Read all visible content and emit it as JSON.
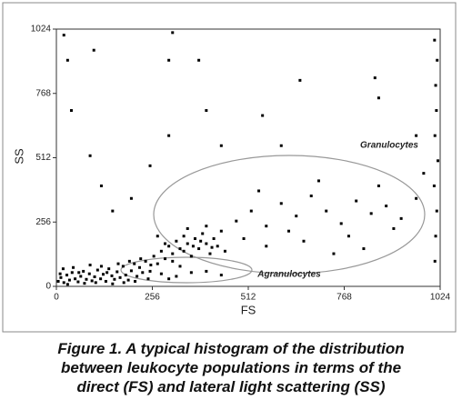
{
  "chart_data": {
    "type": "scatter",
    "xlabel": "FS",
    "ylabel": "SS",
    "xlim": [
      0,
      1024
    ],
    "ylim": [
      0,
      1024
    ],
    "xticks": [
      0,
      256,
      512,
      768,
      1024
    ],
    "yticks": [
      0,
      256,
      512,
      768,
      1024
    ],
    "color": "#000000",
    "annotations": [
      "Granulocytes",
      "Agranulocytes"
    ],
    "caption_lines": [
      "Figure 1. A typical histogram of the distribution",
      "between leukocyte populations in terms of the",
      "direct (FS) and lateral light scattering (SS)"
    ],
    "x": [
      5,
      12,
      20,
      28,
      35,
      42,
      50,
      58,
      65,
      72,
      80,
      88,
      95,
      102,
      110,
      118,
      125,
      132,
      140,
      148,
      155,
      162,
      170,
      178,
      185,
      192,
      200,
      208,
      215,
      222,
      230,
      238,
      245,
      252,
      10,
      18,
      30,
      45,
      60,
      75,
      90,
      105,
      120,
      135,
      150,
      165,
      180,
      195,
      210,
      225,
      260,
      270,
      280,
      290,
      300,
      310,
      320,
      330,
      340,
      350,
      360,
      370,
      380,
      390,
      400,
      410,
      420,
      430,
      440,
      450,
      310,
      340,
      365,
      385,
      415,
      290,
      350,
      400,
      270,
      330,
      250,
      280,
      320,
      360,
      400,
      440,
      300,
      480,
      520,
      560,
      600,
      640,
      680,
      720,
      760,
      800,
      840,
      880,
      920,
      960,
      700,
      620,
      540,
      860,
      900,
      780,
      660,
      500,
      560,
      740,
      820,
      150,
      120,
      200,
      90,
      250,
      300,
      400,
      550,
      650,
      850,
      300,
      100,
      30,
      40,
      440,
      600,
      960,
      980,
      1010,
      1012,
      1015,
      1008,
      1018,
      1010,
      1014,
      1012,
      1016,
      1009,
      310,
      20,
      380,
      860
    ],
    "y": [
      20,
      35,
      15,
      45,
      25,
      55,
      30,
      18,
      40,
      60,
      28,
      50,
      22,
      38,
      65,
      30,
      48,
      20,
      70,
      42,
      28,
      58,
      35,
      80,
      45,
      25,
      62,
      90,
      40,
      75,
      55,
      100,
      30,
      85,
      50,
      70,
      8,
      75,
      55,
      12,
      85,
      15,
      80,
      55,
      10,
      90,
      15,
      100,
      20,
      110,
      120,
      90,
      140,
      110,
      160,
      130,
      180,
      150,
      200,
      170,
      120,
      190,
      150,
      210,
      170,
      130,
      190,
      160,
      220,
      140,
      100,
      140,
      160,
      180,
      155,
      170,
      230,
      240,
      200,
      80,
      60,
      50,
      40,
      55,
      60,
      45,
      30,
      260,
      300,
      240,
      330,
      280,
      360,
      300,
      250,
      340,
      290,
      320,
      270,
      350,
      420,
      220,
      380,
      400,
      230,
      200,
      180,
      190,
      160,
      130,
      150,
      300,
      400,
      350,
      520,
      480,
      600,
      700,
      680,
      820,
      830,
      900,
      940,
      900,
      700,
      560,
      560,
      600,
      450,
      100,
      200,
      300,
      400,
      500,
      600,
      700,
      800,
      900,
      980,
      1010,
      1000,
      900,
      750
    ]
  }
}
